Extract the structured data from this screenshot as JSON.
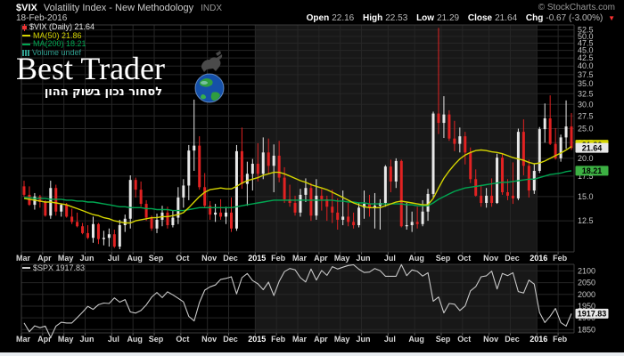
{
  "header": {
    "symbol": "$VIX",
    "title": "Volatility Index - New Methodology",
    "exchange": "INDX",
    "date": "18-Feb-2016",
    "copyright": "© StockCharts.com",
    "quote": {
      "open_label": "Open",
      "open": "22.16",
      "high_label": "High",
      "high": "22.53",
      "low_label": "Low",
      "low": "21.29",
      "close_label": "Close",
      "close": "21.64",
      "chg_label": "Chg",
      "chg": "-0.67 (-3.00%)",
      "chg_dir": "▼"
    }
  },
  "legend": {
    "vix": "$VIX (Daily) 21.64",
    "ma50": "MA(50) 21.86",
    "ma200": "MA(200) 18.21",
    "volume": "Volume undef",
    "spx": "$SPX 1917.83"
  },
  "watermark": {
    "title": "Best Trader",
    "subtitle": "לסחור נכון בשוק ההון"
  },
  "colors": {
    "background": "#000000",
    "year_band": "#181818",
    "grid": "#262626",
    "frame": "#3c3c3c",
    "candle_up": "#e8e8e8",
    "candle_down": "#e22222",
    "ma50": "#d4d400",
    "ma200": "#00a651",
    "spx_line": "#c8c8c8",
    "axis_text": "#c8c8c8",
    "month_text": "#d8d8d8",
    "year_text": "#ffffff",
    "badge_white_bg": "#e8e8e8",
    "badge_yellow_bg": "#d4d400",
    "badge_green_bg": "#3cb043"
  },
  "chart_data": [
    {
      "type": "candlestick",
      "title": "$VIX (Daily) with MA(50) and MA(200)",
      "scale": "log",
      "ylim": [
        9.9,
        54.5
      ],
      "yticks": [
        52.5,
        50.0,
        47.5,
        45.0,
        42.5,
        40.0,
        37.5,
        35.0,
        32.5,
        30.0,
        27.5,
        25.0,
        22.5,
        20.0,
        17.5,
        15.0,
        12.5
      ],
      "grid": true,
      "last_close": "21.64",
      "ma50_last": "21.86",
      "ma200_last": "18.21",
      "candles_ohlc": [
        [
          16.2,
          16.9,
          15.0,
          15.2
        ],
        [
          15.2,
          16.2,
          14.0,
          14.1
        ],
        [
          14.1,
          15.4,
          13.6,
          15.0
        ],
        [
          15.0,
          15.2,
          13.8,
          14.4
        ],
        [
          14.4,
          14.6,
          12.9,
          13.0
        ],
        [
          13.0,
          16.9,
          12.7,
          16.0
        ],
        [
          16.0,
          16.4,
          13.0,
          13.4
        ],
        [
          13.4,
          14.2,
          12.9,
          14.1
        ],
        [
          14.1,
          14.3,
          12.8,
          12.9
        ],
        [
          12.9,
          13.7,
          12.2,
          12.4
        ],
        [
          12.4,
          13.3,
          11.9,
          12.0
        ],
        [
          12.0,
          12.3,
          11.3,
          11.4
        ],
        [
          11.4,
          12.1,
          10.9,
          11.0
        ],
        [
          11.0,
          12.9,
          10.6,
          12.2
        ],
        [
          12.2,
          12.3,
          10.5,
          10.9
        ],
        [
          10.9,
          11.6,
          10.4,
          11.0
        ],
        [
          11.0,
          11.8,
          10.3,
          11.3
        ],
        [
          11.3,
          11.7,
          10.2,
          10.3
        ],
        [
          10.3,
          12.6,
          10.1,
          12.1
        ],
        [
          12.1,
          13.1,
          11.5,
          12.7
        ],
        [
          12.7,
          17.6,
          11.8,
          17.0
        ],
        [
          17.0,
          17.3,
          14.9,
          15.8
        ],
        [
          15.8,
          16.8,
          13.9,
          14.2
        ],
        [
          14.2,
          14.6,
          12.5,
          12.8
        ],
        [
          12.8,
          13.0,
          11.6,
          11.8
        ],
        [
          11.8,
          13.2,
          11.4,
          12.6
        ],
        [
          12.6,
          14.0,
          12.0,
          13.3
        ],
        [
          13.3,
          13.9,
          11.8,
          12.1
        ],
        [
          12.1,
          13.5,
          11.9,
          12.8
        ],
        [
          12.8,
          16.1,
          12.2,
          14.9
        ],
        [
          14.9,
          17.1,
          13.8,
          16.3
        ],
        [
          16.3,
          22.1,
          14.6,
          21.2
        ],
        [
          21.2,
          31.1,
          18.2,
          22.0
        ],
        [
          22.0,
          23.6,
          15.8,
          16.1
        ],
        [
          16.1,
          17.9,
          13.8,
          14.0
        ],
        [
          14.0,
          14.5,
          12.6,
          13.1
        ],
        [
          13.1,
          14.2,
          12.4,
          13.3
        ],
        [
          13.3,
          14.7,
          12.6,
          12.9
        ],
        [
          12.9,
          13.9,
          12.2,
          13.3
        ],
        [
          13.3,
          14.9,
          11.5,
          11.8
        ],
        [
          11.8,
          22.1,
          11.6,
          21.1
        ],
        [
          21.1,
          25.2,
          15.9,
          16.5
        ],
        [
          16.5,
          19.5,
          14.0,
          17.8
        ],
        [
          17.8,
          19.9,
          15.7,
          19.2
        ],
        [
          19.2,
          22.4,
          16.8,
          17.8
        ],
        [
          17.8,
          23.4,
          17.1,
          20.9
        ],
        [
          20.9,
          23.2,
          17.8,
          18.9
        ],
        [
          18.9,
          22.2,
          15.5,
          20.4
        ],
        [
          20.4,
          22.8,
          16.7,
          17.3
        ],
        [
          17.3,
          18.7,
          14.3,
          14.7
        ],
        [
          14.7,
          16.4,
          13.9,
          14.3
        ],
        [
          14.3,
          15.1,
          13.0,
          13.3
        ],
        [
          13.3,
          15.9,
          12.9,
          15.2
        ],
        [
          15.2,
          17.2,
          14.4,
          16.0
        ],
        [
          16.0,
          16.6,
          12.5,
          13.0
        ],
        [
          13.0,
          17.1,
          12.6,
          15.1
        ],
        [
          15.1,
          15.9,
          13.5,
          14.7
        ],
        [
          14.7,
          15.1,
          12.5,
          13.9
        ],
        [
          13.9,
          15.8,
          12.3,
          13.3
        ],
        [
          13.3,
          14.8,
          11.7,
          12.6
        ],
        [
          12.6,
          15.7,
          12.1,
          12.9
        ],
        [
          12.9,
          14.3,
          12.0,
          12.4
        ],
        [
          12.4,
          13.3,
          11.8,
          12.1
        ],
        [
          12.1,
          14.3,
          11.9,
          13.8
        ],
        [
          13.8,
          15.7,
          12.7,
          14.2
        ],
        [
          14.2,
          15.2,
          12.9,
          13.8
        ],
        [
          13.8,
          15.4,
          11.8,
          14.0
        ],
        [
          14.0,
          14.7,
          11.7,
          14.3
        ],
        [
          14.3,
          19.0,
          13.9,
          18.8
        ],
        [
          18.8,
          19.8,
          15.5,
          16.8
        ],
        [
          16.8,
          20.0,
          16.0,
          19.6
        ],
        [
          19.6,
          19.8,
          11.9,
          12.0
        ],
        [
          12.0,
          14.3,
          11.7,
          12.1
        ],
        [
          12.1,
          13.4,
          11.5,
          12.4
        ],
        [
          12.4,
          13.9,
          11.8,
          12.2
        ],
        [
          12.2,
          14.6,
          12.0,
          13.4
        ],
        [
          13.4,
          15.9,
          12.5,
          15.3
        ],
        [
          15.3,
          28.4,
          14.8,
          28.0
        ],
        [
          28.0,
          53.3,
          24.0,
          26.1
        ],
        [
          26.1,
          31.9,
          23.3,
          27.8
        ],
        [
          27.8,
          28.7,
          22.8,
          23.2
        ],
        [
          23.2,
          26.5,
          21.1,
          22.3
        ],
        [
          22.3,
          25.2,
          20.9,
          23.6
        ],
        [
          23.6,
          24.4,
          19.1,
          20.9
        ],
        [
          20.9,
          21.7,
          16.6,
          17.1
        ],
        [
          17.1,
          18.4,
          15.0,
          15.1
        ],
        [
          15.1,
          16.4,
          13.9,
          14.3
        ],
        [
          14.3,
          16.0,
          13.8,
          15.1
        ],
        [
          15.1,
          17.2,
          13.9,
          14.3
        ],
        [
          14.3,
          20.7,
          14.2,
          20.1
        ],
        [
          20.1,
          20.8,
          15.2,
          15.5
        ],
        [
          15.5,
          17.1,
          14.6,
          15.1
        ],
        [
          15.1,
          19.4,
          14.2,
          14.8
        ],
        [
          14.8,
          25.0,
          14.6,
          24.4
        ],
        [
          24.4,
          26.8,
          17.6,
          18.9
        ],
        [
          18.9,
          19.8,
          14.9,
          15.7
        ],
        [
          15.7,
          19.2,
          15.3,
          18.2
        ],
        [
          18.2,
          25.3,
          17.9,
          24.9
        ],
        [
          24.9,
          30.2,
          22.5,
          27.0
        ],
        [
          27.0,
          32.1,
          22.1,
          22.3
        ],
        [
          22.3,
          25.1,
          19.8,
          20.0
        ],
        [
          20.0,
          23.9,
          19.5,
          23.4
        ],
        [
          23.4,
          30.9,
          21.5,
          25.4
        ],
        [
          25.4,
          28.1,
          21.3,
          21.6
        ]
      ],
      "ma50": [
        14.8,
        14.7,
        14.6,
        14.5,
        14.4,
        14.4,
        14.3,
        14.2,
        14.1,
        13.9,
        13.7,
        13.5,
        13.3,
        13.1,
        13.0,
        12.8,
        12.7,
        12.5,
        12.4,
        12.3,
        12.3,
        12.5,
        12.6,
        12.7,
        12.8,
        12.8,
        12.9,
        12.9,
        13.0,
        13.1,
        13.3,
        13.8,
        14.4,
        15.0,
        15.5,
        15.8,
        15.9,
        16.0,
        15.9,
        15.9,
        16.2,
        16.6,
        16.9,
        17.1,
        17.3,
        17.6,
        17.8,
        18.0,
        18.0,
        17.8,
        17.5,
        17.2,
        16.9,
        16.7,
        16.4,
        16.2,
        16.0,
        15.8,
        15.5,
        15.2,
        14.9,
        14.6,
        14.3,
        14.1,
        13.9,
        13.8,
        13.8,
        13.8,
        14.0,
        14.2,
        14.4,
        14.5,
        14.4,
        14.3,
        14.2,
        14.1,
        14.1,
        14.8,
        16.0,
        17.2,
        18.2,
        19.1,
        19.9,
        20.5,
        20.9,
        21.2,
        21.3,
        21.2,
        21.0,
        20.9,
        20.7,
        20.4,
        20.1,
        19.9,
        19.7,
        19.4,
        19.2,
        19.3,
        19.6,
        20.0,
        20.4,
        20.8,
        21.3,
        21.86
      ],
      "ma200": [
        14.9,
        14.9,
        14.8,
        14.8,
        14.8,
        14.7,
        14.7,
        14.7,
        14.6,
        14.6,
        14.5,
        14.5,
        14.4,
        14.4,
        14.3,
        14.2,
        14.1,
        14.0,
        13.9,
        13.9,
        13.8,
        13.8,
        13.8,
        13.7,
        13.7,
        13.6,
        13.6,
        13.6,
        13.5,
        13.5,
        13.5,
        13.6,
        13.7,
        13.8,
        13.8,
        13.8,
        13.8,
        13.8,
        13.8,
        13.8,
        13.9,
        14.0,
        14.1,
        14.2,
        14.3,
        14.4,
        14.5,
        14.6,
        14.6,
        14.6,
        14.6,
        14.6,
        14.6,
        14.6,
        14.6,
        14.6,
        14.6,
        14.6,
        14.6,
        14.5,
        14.5,
        14.4,
        14.4,
        14.3,
        14.3,
        14.2,
        14.2,
        14.2,
        14.2,
        14.2,
        14.2,
        14.2,
        14.1,
        14.1,
        14.0,
        14.0,
        14.0,
        14.3,
        14.7,
        15.0,
        15.3,
        15.6,
        15.8,
        16.0,
        16.1,
        16.2,
        16.3,
        16.4,
        16.5,
        16.6,
        16.7,
        16.7,
        16.8,
        16.9,
        17.0,
        17.1,
        17.1,
        17.3,
        17.5,
        17.7,
        17.8,
        17.9,
        18.1,
        18.21
      ],
      "x_ticks": [
        {
          "label": "Mar",
          "i": 0
        },
        {
          "label": "Apr",
          "i": 4
        },
        {
          "label": "May",
          "i": 8
        },
        {
          "label": "Jun",
          "i": 12
        },
        {
          "label": "Jul",
          "i": 17
        },
        {
          "label": "Aug",
          "i": 21
        },
        {
          "label": "Sep",
          "i": 25
        },
        {
          "label": "Oct",
          "i": 30
        },
        {
          "label": "Nov",
          "i": 35
        },
        {
          "label": "Dec",
          "i": 39
        },
        {
          "label": "2015",
          "i": 44,
          "year": true
        },
        {
          "label": "Feb",
          "i": 48
        },
        {
          "label": "Mar",
          "i": 52
        },
        {
          "label": "Apr",
          "i": 56
        },
        {
          "label": "May",
          "i": 60
        },
        {
          "label": "Jun",
          "i": 64
        },
        {
          "label": "Jul",
          "i": 69
        },
        {
          "label": "Aug",
          "i": 74
        },
        {
          "label": "Sep",
          "i": 79
        },
        {
          "label": "Oct",
          "i": 83
        },
        {
          "label": "Nov",
          "i": 88
        },
        {
          "label": "Dec",
          "i": 92
        },
        {
          "label": "2016",
          "i": 97,
          "year": true
        },
        {
          "label": "Feb",
          "i": 101
        }
      ],
      "band_2015": [
        44,
        97
      ]
    },
    {
      "type": "line",
      "title": "$SPX",
      "scale": "linear",
      "ylim": [
        1836,
        2128
      ],
      "yticks": [
        2100,
        2050,
        2000,
        1950,
        1900,
        1850
      ],
      "grid": true,
      "last_value": "1917.83",
      "values": [
        1878,
        1841,
        1866,
        1858,
        1865,
        1816,
        1865,
        1881,
        1878,
        1878,
        1901,
        1924,
        1949,
        1936,
        1956,
        1963,
        1961,
        1985,
        1967,
        1978,
        1925,
        1920,
        1931,
        1955,
        1988,
        2008,
        1986,
        2011,
        1998,
        1983,
        1968,
        1906,
        1887,
        1965,
        2018,
        2032,
        2040,
        2064,
        2068,
        2075,
        2002,
        2071,
        2089,
        2059,
        2045,
        2020,
        2052,
        1995,
        2055,
        2097,
        2110,
        2105,
        2071,
        2053,
        2108,
        2061,
        2102,
        2081,
        2118,
        2108,
        2116,
        2123,
        2126,
        2107,
        2093,
        2095,
        2110,
        2101,
        2077,
        2077,
        2077,
        2127,
        2080,
        2104,
        2098,
        2078,
        2092,
        1971,
        1989,
        1921,
        1961,
        1958,
        1931,
        1951,
        2015,
        2033,
        2075,
        2079,
        2099,
        2023,
        2089,
        2080,
        2092,
        2012,
        2006,
        2061,
        2044,
        1922,
        1880,
        1907,
        1940,
        1880,
        1865,
        1918
      ]
    }
  ]
}
